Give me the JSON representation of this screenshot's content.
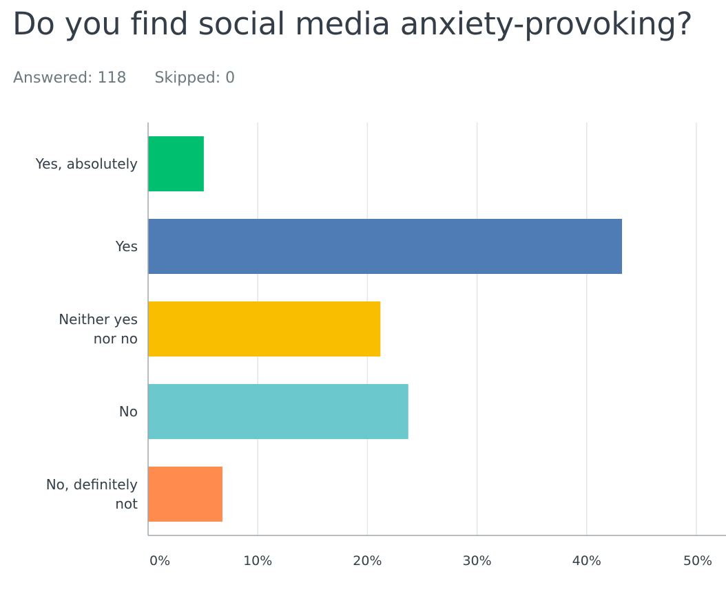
{
  "survey": {
    "question": "Do you find social media anxiety-provoking?",
    "answered_label": "Answered: 118",
    "skipped_label": "Skipped: 0"
  },
  "chart_data": {
    "type": "bar",
    "orientation": "horizontal",
    "title": "Do you find social media anxiety-provoking?",
    "xlabel": "",
    "ylabel": "",
    "xlim": [
      0,
      50
    ],
    "grid": true,
    "categories": [
      [
        "Yes, absolutely"
      ],
      [
        "Yes"
      ],
      [
        "Neither yes",
        "nor no"
      ],
      [
        "No"
      ],
      [
        "No, definitely",
        "not"
      ]
    ],
    "values": [
      5.08,
      43.22,
      21.19,
      23.73,
      6.78
    ],
    "colors": [
      "#00bf6f",
      "#507cb6",
      "#f9be00",
      "#6bc8cd",
      "#ff8b4f"
    ],
    "ticks": [
      0,
      10,
      20,
      30,
      40,
      50
    ],
    "tick_labels": [
      "0%",
      "10%",
      "20%",
      "30%",
      "40%",
      "50%"
    ]
  }
}
